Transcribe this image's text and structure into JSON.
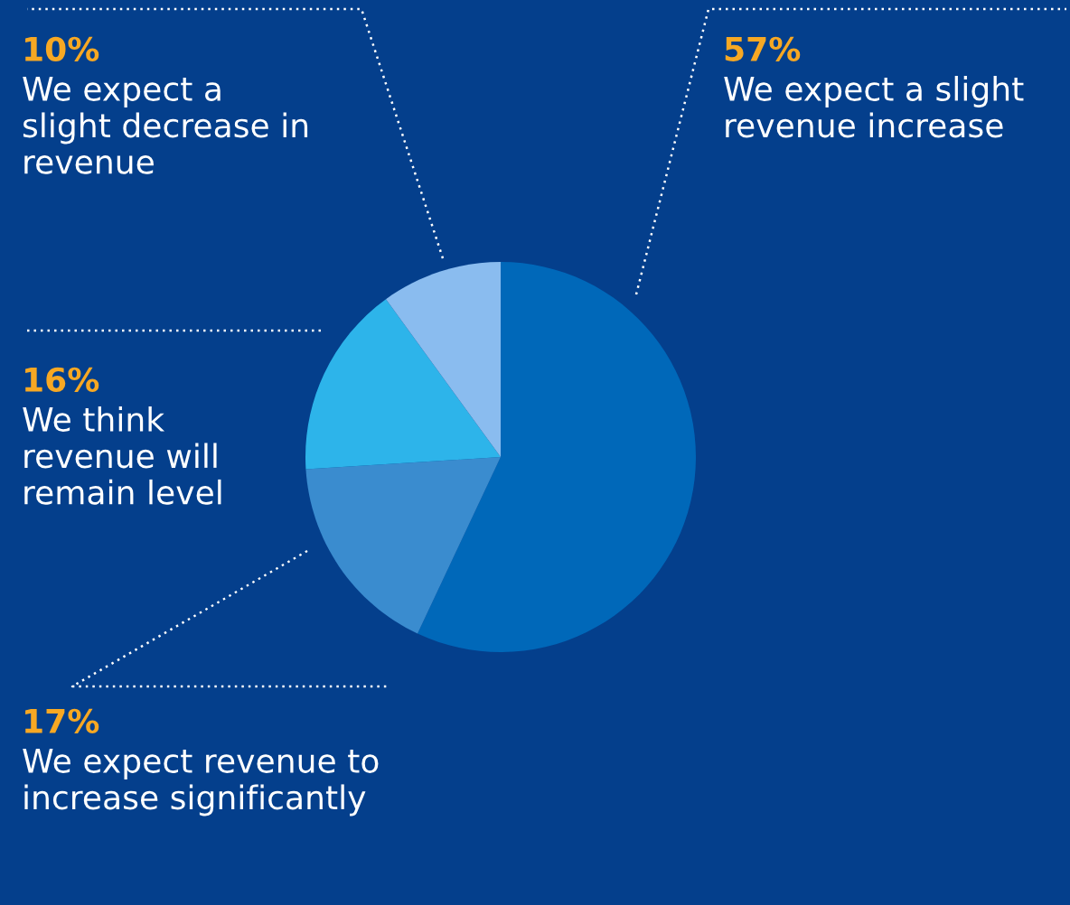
{
  "chart_data": {
    "type": "pie",
    "categories": [
      "We expect a slight\nrevenue increase",
      "We expect revenue to\nincrease significantly",
      "We think\nrevenue will\nremain level",
      "We expect a\nslight decrease in\nrevenue"
    ],
    "values": [
      57,
      17,
      16,
      10
    ],
    "colors": [
      "#0068b9",
      "#3a8ccf",
      "#2db4ea",
      "#8abcef"
    ],
    "value_labels": [
      "57%",
      "17%",
      "16%",
      "10%"
    ]
  }
}
